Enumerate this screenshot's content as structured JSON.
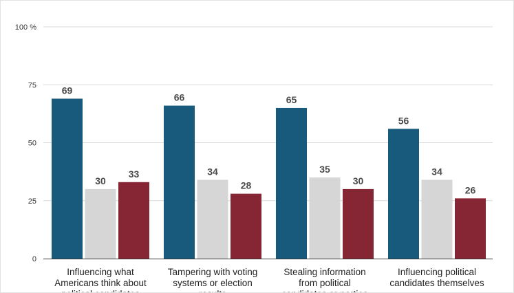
{
  "chart_data": {
    "type": "bar",
    "title": "",
    "xlabel": "",
    "ylabel": "",
    "ylim": [
      0,
      100
    ],
    "yticks": [
      0,
      25,
      50,
      75,
      100
    ],
    "ytick_labels": [
      "0",
      "25",
      "50",
      "75",
      "100 %"
    ],
    "grid": true,
    "legend": "none",
    "categories": [
      [
        "Influencing what",
        "Americans think about",
        "political candidates"
      ],
      [
        "Tampering with voting",
        "systems or election",
        "results"
      ],
      [
        "Stealing information",
        "from political",
        "candidates or parties"
      ],
      [
        "Influencing political",
        "candidates themselves"
      ]
    ],
    "series": [
      {
        "values": [
          69,
          66,
          65,
          56
        ],
        "color": "#175a7c"
      },
      {
        "values": [
          30,
          34,
          35,
          34
        ],
        "color": "#d6d6d6"
      },
      {
        "values": [
          33,
          28,
          30,
          26
        ],
        "color": "#862534"
      }
    ]
  }
}
